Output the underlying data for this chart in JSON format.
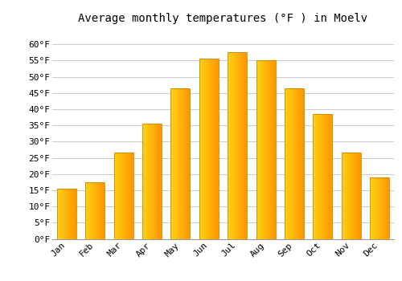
{
  "title": "Average monthly temperatures (°F ) in Moelv",
  "months": [
    "Jan",
    "Feb",
    "Mar",
    "Apr",
    "May",
    "Jun",
    "Jul",
    "Aug",
    "Sep",
    "Oct",
    "Nov",
    "Dec"
  ],
  "values": [
    15.5,
    17.5,
    26.5,
    35.5,
    46.5,
    55.5,
    57.5,
    55.0,
    46.5,
    38.5,
    26.5,
    19.0
  ],
  "bar_color_left": "#FFD040",
  "bar_color_right": "#FFA500",
  "bar_edge_color": "#CC8800",
  "background_color": "#FFFFFF",
  "grid_color": "#CCCCCC",
  "ylim": [
    0,
    65
  ],
  "yticks": [
    0,
    5,
    10,
    15,
    20,
    25,
    30,
    35,
    40,
    45,
    50,
    55,
    60
  ],
  "ytick_labels": [
    "0°F",
    "5°F",
    "10°F",
    "15°F",
    "20°F",
    "25°F",
    "30°F",
    "35°F",
    "40°F",
    "45°F",
    "50°F",
    "55°F",
    "60°F"
  ],
  "title_fontsize": 10,
  "tick_fontsize": 8,
  "font_family": "monospace"
}
